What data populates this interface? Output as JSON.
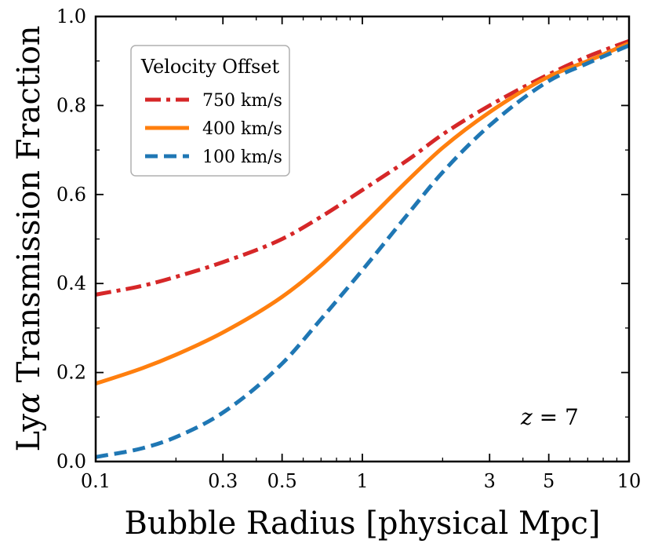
{
  "chart_data": {
    "type": "line",
    "title": "",
    "xlabel": "Bubble Radius [physical Mpc]",
    "ylabel_prefix": "Ly",
    "ylabel_symbol": "α",
    "ylabel_suffix": " Transmission Fraction",
    "xscale": "log",
    "xlim": [
      0.1,
      10
    ],
    "ylim": [
      0.0,
      1.0
    ],
    "x_ticks": [
      0.1,
      0.3,
      0.5,
      1,
      3,
      5,
      10
    ],
    "x_tick_labels": [
      "0.1",
      "0.3",
      "0.5",
      "1",
      "3",
      "5",
      "10"
    ],
    "y_ticks": [
      0.0,
      0.2,
      0.4,
      0.6,
      0.8,
      1.0
    ],
    "y_tick_labels": [
      "0.0",
      "0.2",
      "0.4",
      "0.6",
      "0.8",
      "1.0"
    ],
    "grid": false,
    "legend": {
      "title": "Velocity Offset",
      "placement": "top-left"
    },
    "annotation": {
      "var": "z",
      "text": " = 7",
      "placement": "bottom-right"
    },
    "series": [
      {
        "name": "750 km/s",
        "color": "#d62728",
        "style": "dashdot",
        "x": [
          0.1,
          0.15,
          0.2,
          0.3,
          0.5,
          0.7,
          1,
          1.5,
          2,
          3,
          5,
          7,
          10
        ],
        "values": [
          0.375,
          0.395,
          0.415,
          0.448,
          0.5,
          0.55,
          0.61,
          0.68,
          0.735,
          0.8,
          0.87,
          0.91,
          0.945
        ]
      },
      {
        "name": "400 km/s",
        "color": "#ff7f0e",
        "style": "solid",
        "x": [
          0.1,
          0.15,
          0.2,
          0.3,
          0.5,
          0.7,
          1,
          1.5,
          2,
          3,
          5,
          7,
          10
        ],
        "values": [
          0.175,
          0.21,
          0.24,
          0.29,
          0.37,
          0.44,
          0.53,
          0.635,
          0.705,
          0.785,
          0.865,
          0.9,
          0.94
        ]
      },
      {
        "name": "100 km/s",
        "color": "#1f77b4",
        "style": "dashed",
        "x": [
          0.1,
          0.15,
          0.2,
          0.3,
          0.5,
          0.7,
          1,
          1.5,
          2,
          3,
          5,
          7,
          10
        ],
        "values": [
          0.01,
          0.03,
          0.055,
          0.11,
          0.22,
          0.32,
          0.43,
          0.56,
          0.65,
          0.755,
          0.855,
          0.895,
          0.935
        ]
      }
    ]
  }
}
